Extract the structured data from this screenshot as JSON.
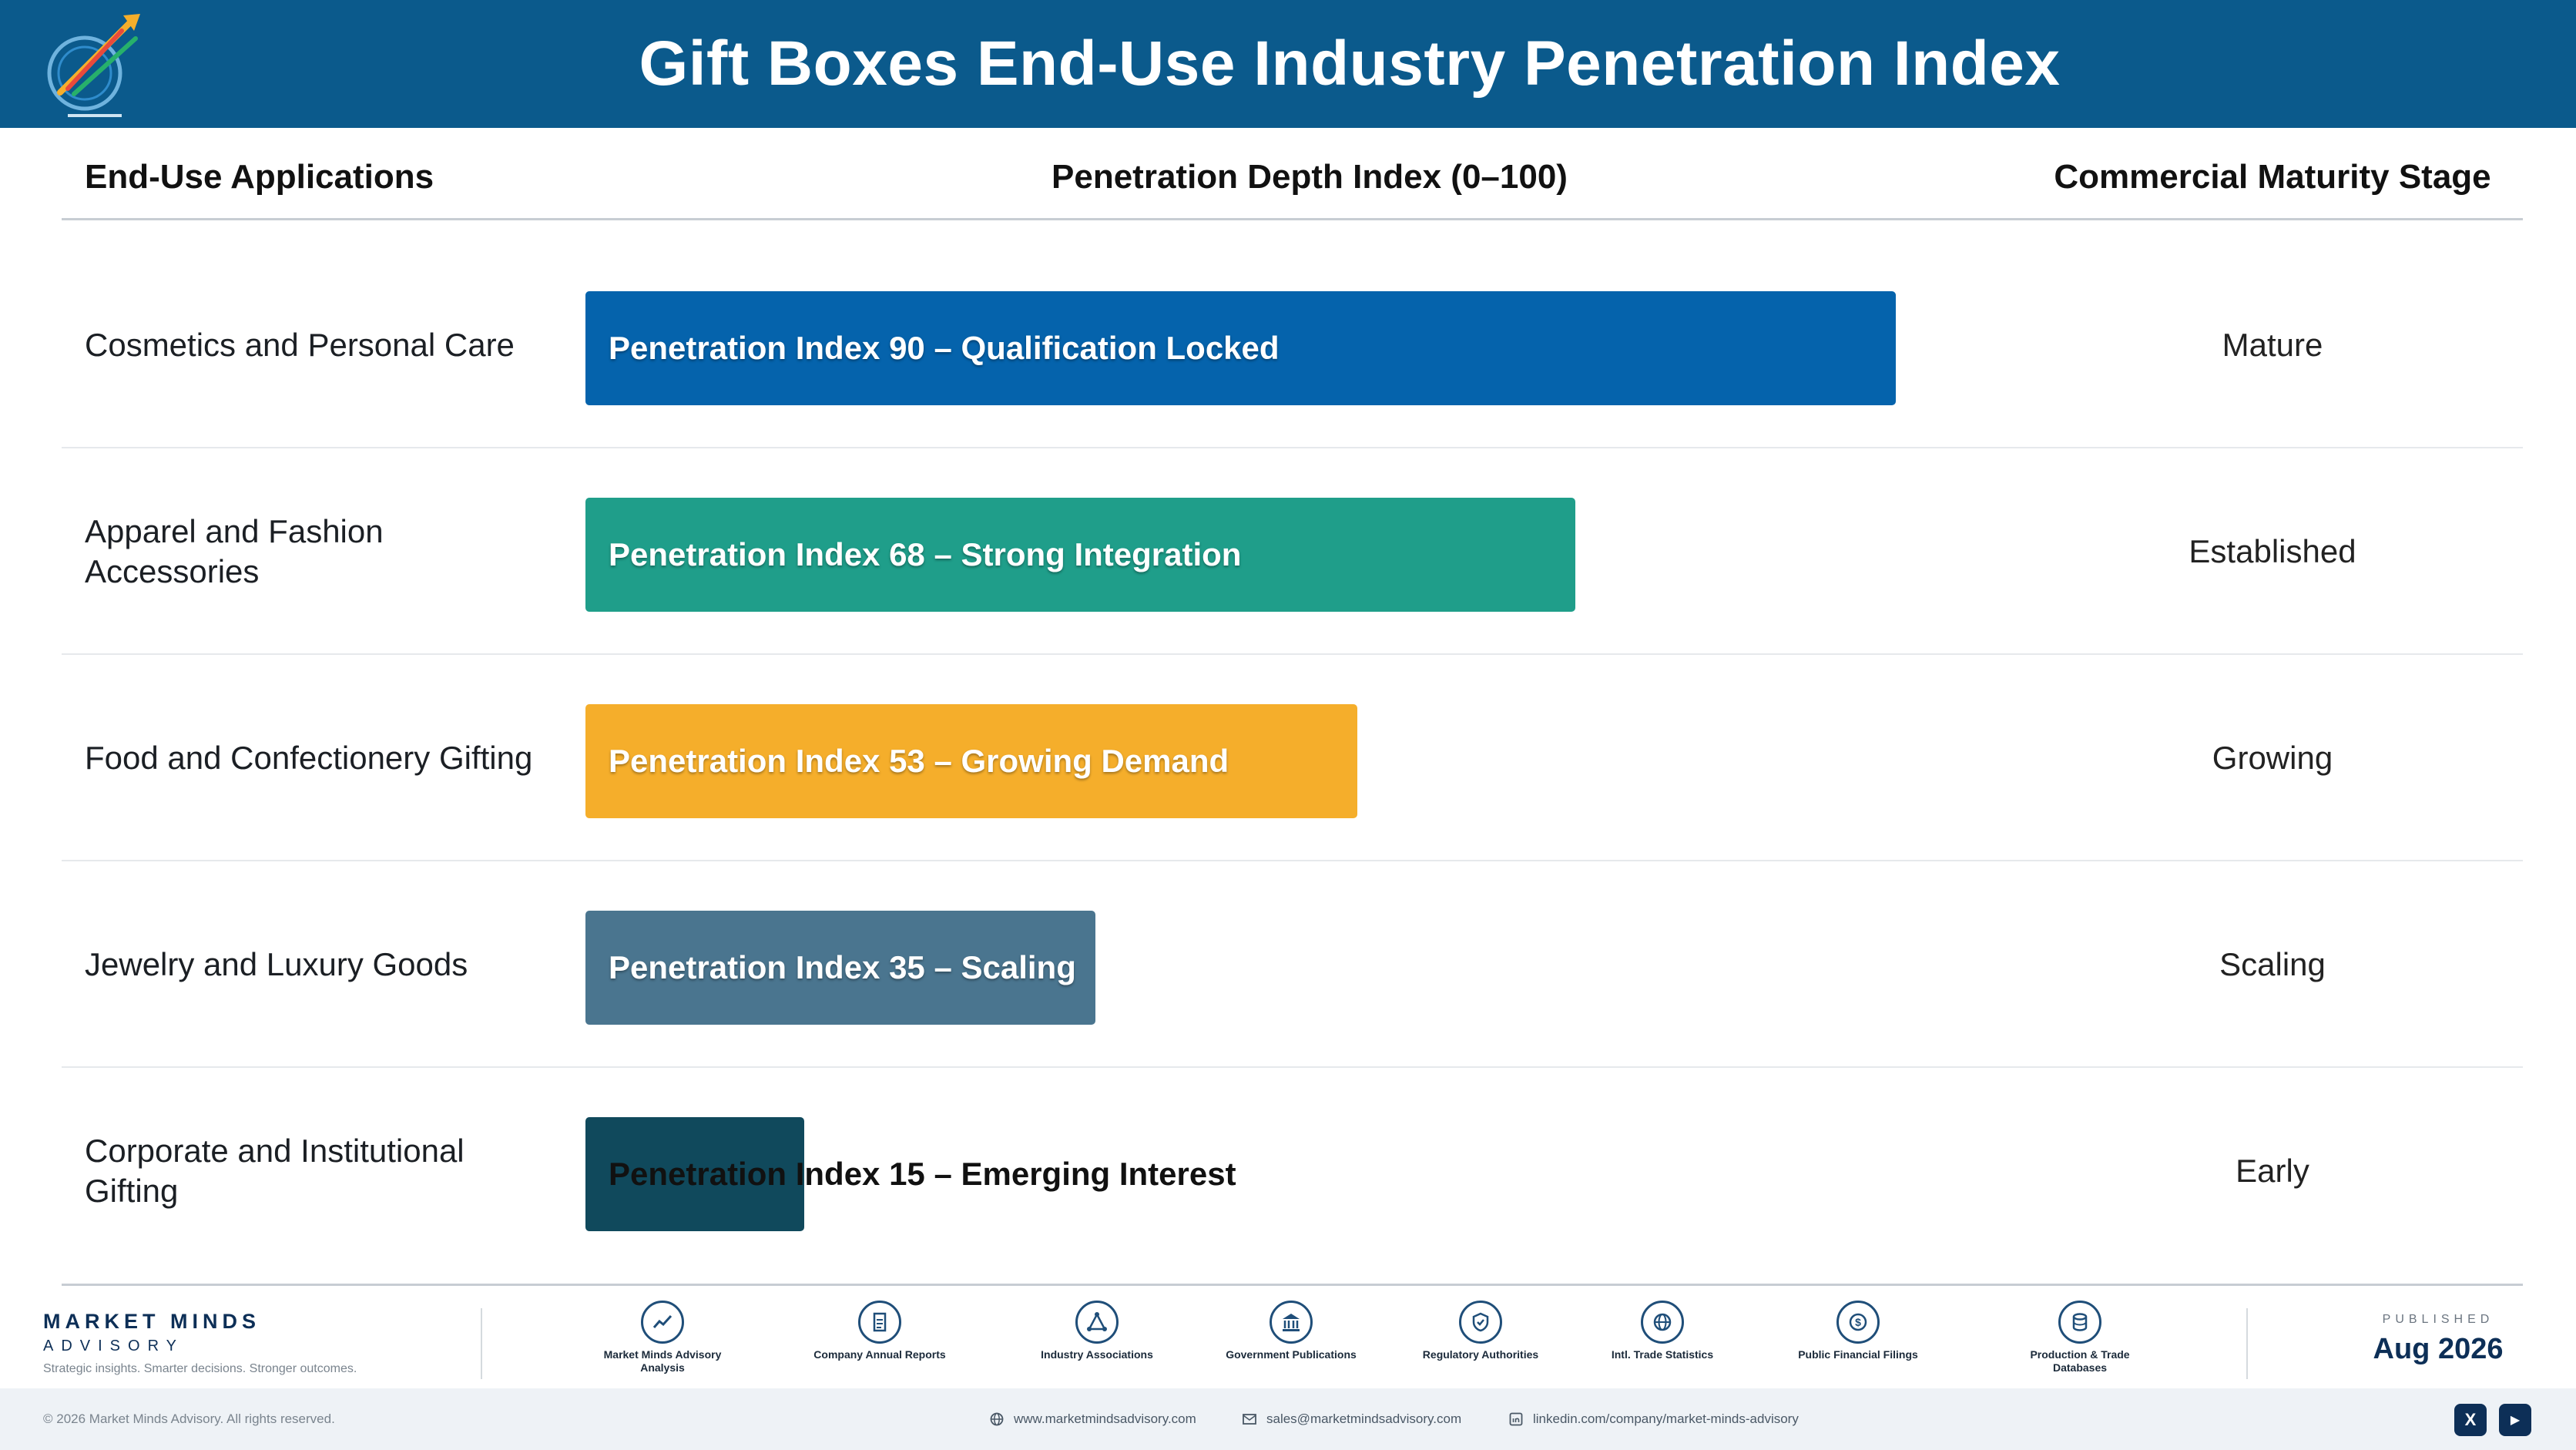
{
  "header": {
    "title": "Gift Boxes End-Use Industry Penetration Index",
    "logo_icon": "market-minds-logo-icon"
  },
  "columns": {
    "applications": "End-Use Applications",
    "index": "Penetration Depth Index (0–100)",
    "stage": "Commercial Maturity Stage"
  },
  "chart_data": {
    "type": "bar",
    "orientation": "horizontal",
    "title": "Gift Boxes End-Use Industry Penetration Index",
    "xlim": [
      0,
      100
    ],
    "grid": false,
    "categories": [
      "Cosmetics and Personal Care",
      "Apparel and Fashion Accessories",
      "Food and Confectionery Gifting",
      "Jewelry and Luxury Goods",
      "Corporate and Institutional Gifting"
    ],
    "values": [
      90,
      68,
      53,
      35,
      15
    ],
    "bar_labels": [
      "Penetration Index 90 – Qualification Locked",
      "Penetration Index 68 – Strong Integration",
      "Penetration Index 53 – Growing Demand",
      "Penetration Index 35 – Scaling",
      "Penetration Index 15 – Emerging Interest"
    ],
    "stages": [
      "Mature",
      "Established",
      "Growing",
      "Scaling",
      "Early"
    ],
    "colors": [
      "#0563ac",
      "#1f9e8a",
      "#f5ae2b",
      "#4a758f",
      "#10495c"
    ]
  },
  "footer": {
    "brand_name": "MARKET MINDS",
    "brand_sub": "ADVISORY",
    "brand_tagline": "Strategic insights. Smarter decisions. Stronger outcomes.",
    "sources": [
      {
        "label": "Market Minds Advisory Analysis",
        "icon": "trend-chart-icon"
      },
      {
        "label": "Company Annual Reports",
        "icon": "document-icon"
      },
      {
        "label": "Industry Associations",
        "icon": "network-icon"
      },
      {
        "label": "Government Publications",
        "icon": "government-building-icon"
      },
      {
        "label": "Regulatory Authorities",
        "icon": "shield-check-icon"
      },
      {
        "label": "Intl. Trade Statistics",
        "icon": "globe-icon"
      },
      {
        "label": "Public Financial Filings",
        "icon": "dollar-coin-icon"
      },
      {
        "label": "Production & Trade Databases",
        "icon": "database-icon"
      }
    ],
    "published_label": "PUBLISHED",
    "published_date": "Aug 2026",
    "copyright": "© 2026 Market Minds Advisory. All rights reserved.",
    "website": "www.marketmindsadvisory.com",
    "email": "sales@marketmindsadvisory.com",
    "linkedin": "linkedin.com/company/market-minds-advisory",
    "social": [
      {
        "icon": "x-icon",
        "label": "X"
      },
      {
        "icon": "youtube-icon",
        "label": "▶"
      }
    ]
  }
}
